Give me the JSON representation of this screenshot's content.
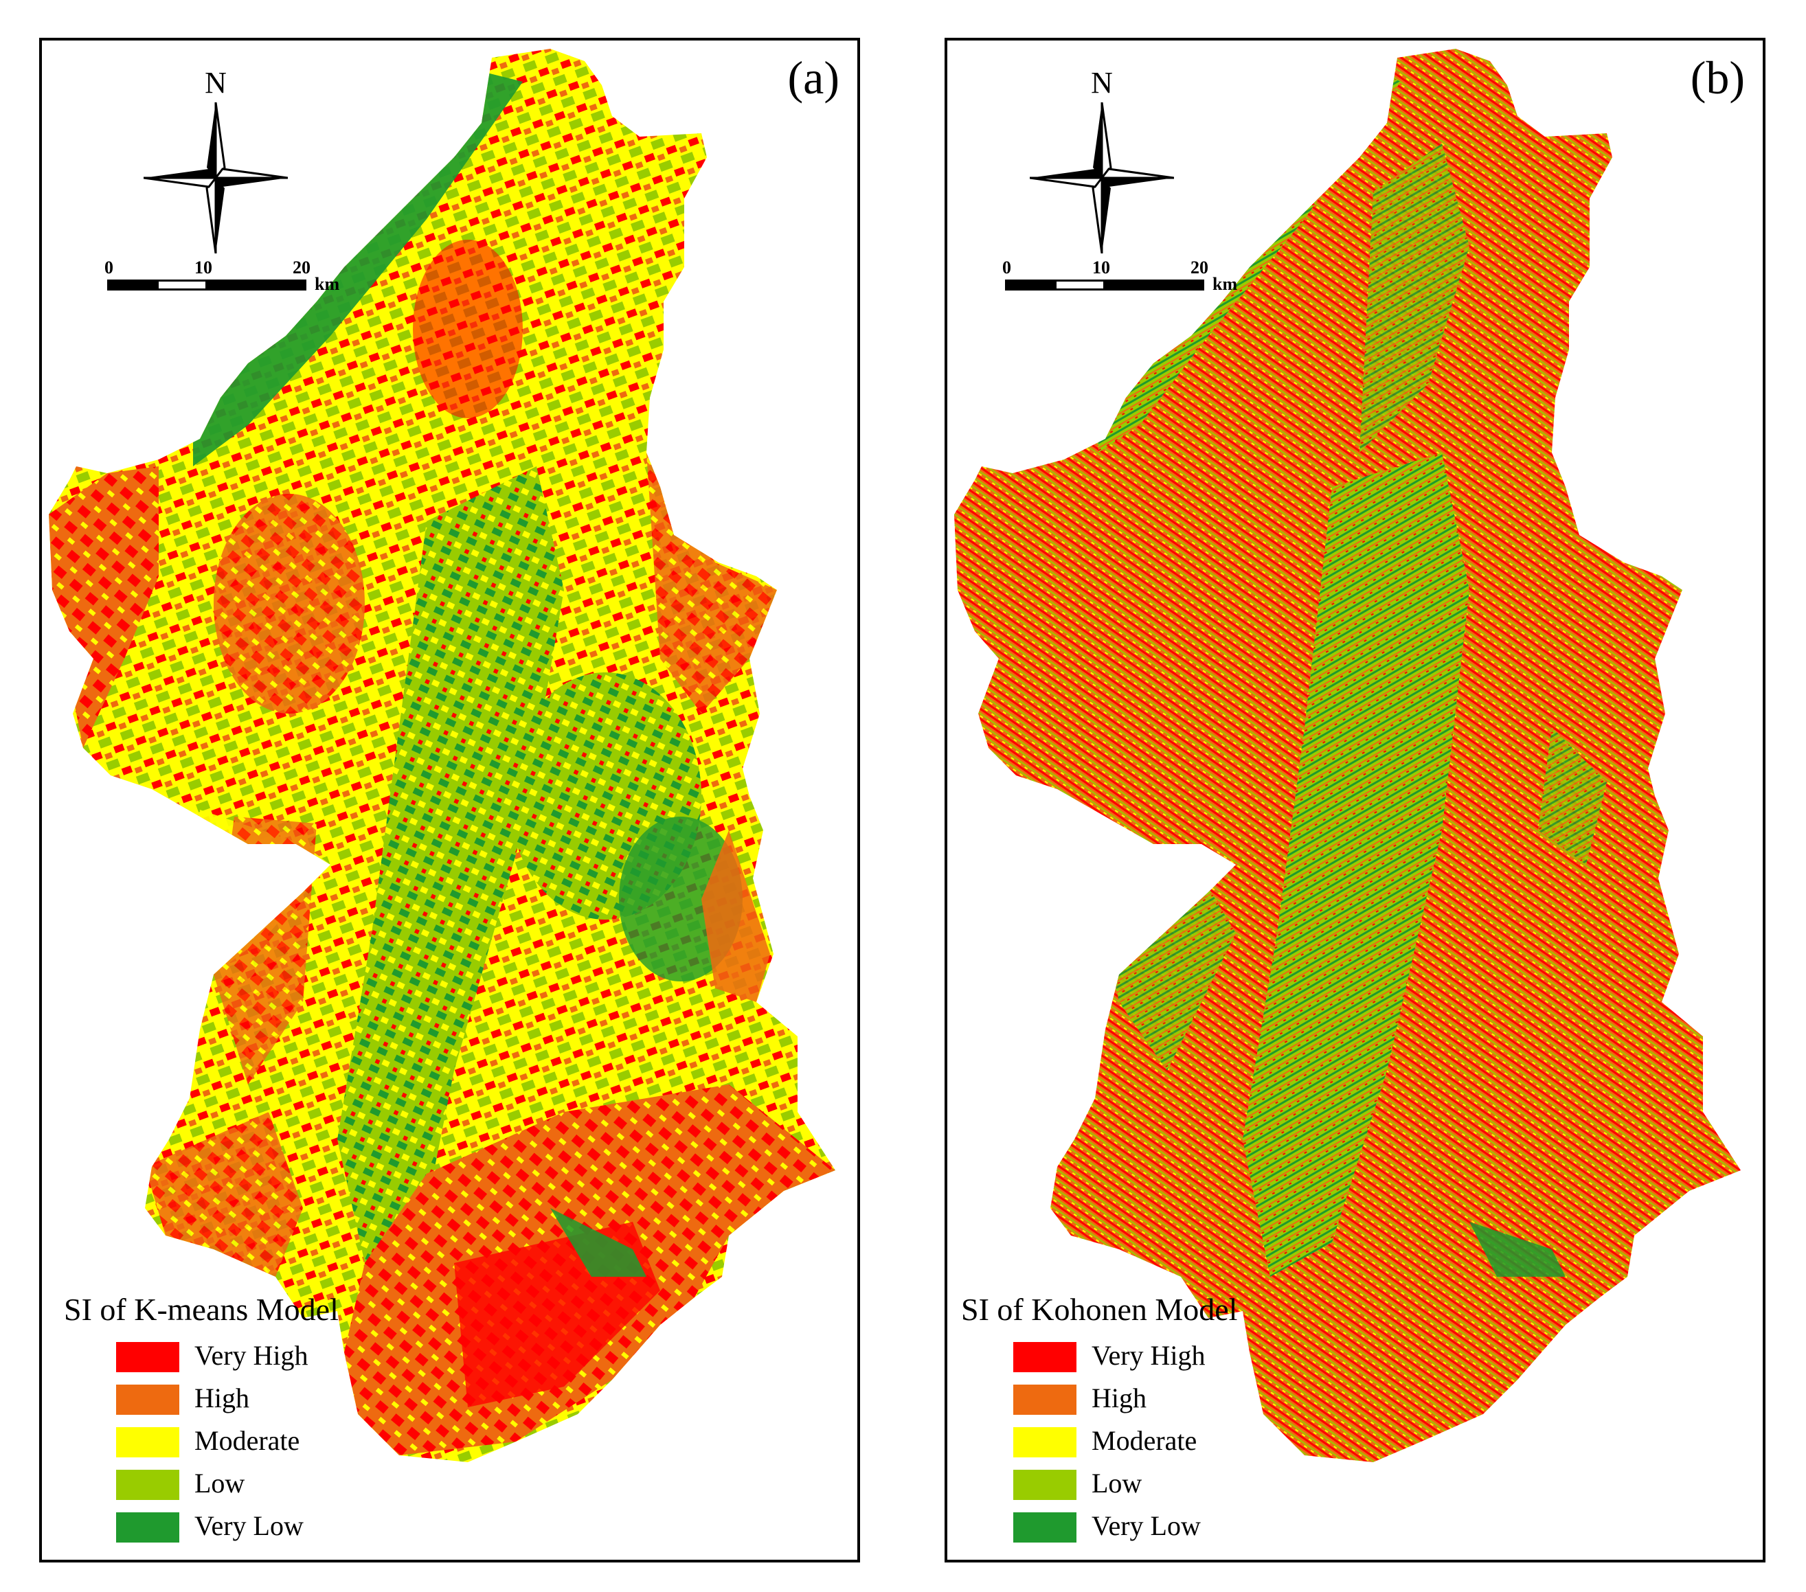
{
  "colors": {
    "very_high": "#ff0000",
    "high": "#ee6a10",
    "moderate": "#ffff00",
    "low": "#99cc00",
    "very_low": "#1f9a2e"
  },
  "scale": {
    "ticks": [
      "0",
      "10",
      "20"
    ],
    "unit": "km"
  },
  "compass": {
    "north_label": "N",
    "icon": "north-arrow-compass-icon"
  },
  "legend_items": [
    {
      "label": "Very High",
      "key": "very_high"
    },
    {
      "label": "High",
      "key": "high"
    },
    {
      "label": "Moderate",
      "key": "moderate"
    },
    {
      "label": "Low",
      "key": "low"
    },
    {
      "label": "Very Low",
      "key": "very_low"
    }
  ],
  "panels": [
    {
      "label": "(a)",
      "legend_title": "SI of K-means Model",
      "dominant_classes": [
        "very_low",
        "low",
        "moderate",
        "very_high",
        "high"
      ]
    },
    {
      "label": "(b)",
      "legend_title": "SI of Kohonen Model",
      "dominant_classes": [
        "high",
        "very_high",
        "low",
        "very_low",
        "moderate"
      ]
    }
  ]
}
